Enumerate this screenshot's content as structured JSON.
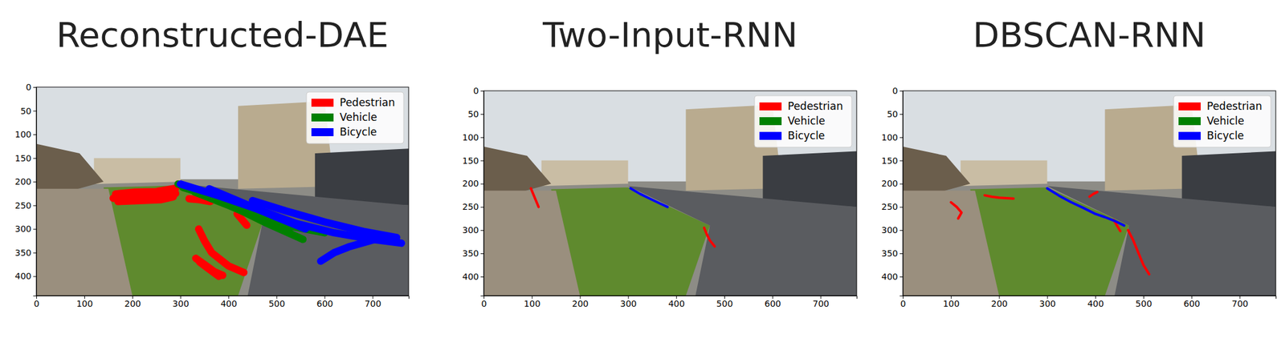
{
  "chart_data": [
    {
      "type": "line",
      "title": "Reconstructed-DAE",
      "xlim": [
        0,
        775
      ],
      "ylim": [
        441,
        0
      ],
      "xticks": [
        0,
        100,
        200,
        300,
        400,
        500,
        600,
        700
      ],
      "yticks": [
        0,
        50,
        100,
        150,
        200,
        250,
        300,
        350,
        400
      ],
      "legend": "upper right",
      "series": [
        {
          "name": "Pedestrian",
          "color": "#ff0000",
          "tracks": [
            {
              "x": [
                160,
                200,
                240,
                290
              ],
              "y": [
                235,
                232,
                230,
                225
              ]
            },
            {
              "x": [
                165,
                205,
                250,
                290
              ],
              "y": [
                226,
                222,
                221,
                214
              ]
            },
            {
              "x": [
                170,
                215,
                260,
                285
              ],
              "y": [
                242,
                240,
                238,
                232
              ]
            },
            {
              "x": [
                318,
                340,
                362
              ],
              "y": [
                236,
                238,
                242
              ]
            },
            {
              "x": [
                418,
                428,
                438
              ],
              "y": [
                268,
                280,
                292
              ]
            },
            {
              "x": [
                338,
                350,
                365,
                400,
                432
              ],
              "y": [
                300,
                325,
                350,
                378,
                392
              ]
            },
            {
              "x": [
                332,
                350,
                370,
                388
              ],
              "y": [
                362,
                375,
                390,
                398
              ]
            },
            {
              "x": [
                340,
                360,
                380
              ],
              "y": [
                370,
                385,
                400
              ]
            }
          ]
        },
        {
          "name": "Vehicle",
          "color": "#008000",
          "tracks": [
            {
              "x": [
                295,
                350,
                420,
                480,
                555
              ],
              "y": [
                205,
                225,
                258,
                288,
                322
              ]
            },
            {
              "x": [
                305,
                370,
                440,
                520,
                600
              ],
              "y": [
                212,
                232,
                262,
                292,
                308
              ]
            },
            {
              "x": [
                330,
                400,
                470,
                530
              ],
              "y": [
                222,
                250,
                280,
                310
              ]
            }
          ]
        },
        {
          "name": "Bicycle",
          "color": "#0000ff",
          "tracks": [
            {
              "x": [
                300,
                380,
                460,
                540,
                620,
                700,
                760
              ],
              "y": [
                205,
                230,
                258,
                288,
                308,
                322,
                330
              ]
            },
            {
              "x": [
                360,
                430,
                500,
                560
              ],
              "y": [
                215,
                245,
                275,
                300
              ]
            },
            {
              "x": [
                450,
                520,
                600,
                680,
                750
              ],
              "y": [
                240,
                262,
                285,
                305,
                318
              ]
            },
            {
              "x": [
                705,
                650,
                620,
                592
              ],
              "y": [
                322,
                338,
                350,
                368
              ]
            }
          ]
        }
      ]
    },
    {
      "type": "line",
      "title": "Two-Input-RNN",
      "xlim": [
        0,
        775
      ],
      "ylim": [
        441,
        0
      ],
      "xticks": [
        0,
        100,
        200,
        300,
        400,
        500,
        600,
        700
      ],
      "yticks": [
        0,
        50,
        100,
        150,
        200,
        250,
        300,
        350,
        400
      ],
      "legend": "upper right",
      "series": [
        {
          "name": "Pedestrian",
          "color": "#ff0000",
          "tracks": [
            {
              "x": [
                98,
                104,
                110,
                114
              ],
              "y": [
                210,
                225,
                240,
                250
              ]
            },
            {
              "x": [
                458,
                464,
                470,
                480
              ],
              "y": [
                295,
                310,
                322,
                335
              ]
            }
          ]
        },
        {
          "name": "Vehicle",
          "color": "#008000",
          "tracks": []
        },
        {
          "name": "Bicycle",
          "color": "#0000ff",
          "tracks": [
            {
              "x": [
                305,
                325,
                345,
                365,
                382
              ],
              "y": [
                210,
                222,
                232,
                242,
                250
              ]
            }
          ]
        }
      ]
    },
    {
      "type": "line",
      "title": "DBSCAN-RNN",
      "xlim": [
        0,
        775
      ],
      "ylim": [
        441,
        0
      ],
      "xticks": [
        0,
        100,
        200,
        300,
        400,
        500,
        600,
        700
      ],
      "yticks": [
        0,
        50,
        100,
        150,
        200,
        250,
        300,
        350,
        400
      ],
      "legend": "upper right",
      "series": [
        {
          "name": "Pedestrian",
          "color": "#ff0000",
          "tracks": [
            {
              "x": [
                100,
                112,
                122,
                115
              ],
              "y": [
                240,
                250,
                262,
                275
              ]
            },
            {
              "x": [
                170,
                185,
                200,
                215,
                230
              ],
              "y": [
                225,
                228,
                230,
                231,
                232
              ]
            },
            {
              "x": [
                388,
                396,
                404
              ],
              "y": [
                228,
                222,
                218
              ]
            },
            {
              "x": [
                438,
                445,
                452
              ],
              "y": [
                278,
                290,
                302
              ]
            },
            {
              "x": [
                468,
                478,
                488,
                500,
                512
              ],
              "y": [
                300,
                320,
                345,
                375,
                395
              ]
            }
          ]
        },
        {
          "name": "Vehicle",
          "color": "#008000",
          "tracks": []
        },
        {
          "name": "Bicycle",
          "color": "#0000ff",
          "tracks": [
            {
              "x": [
                300,
                325,
                350,
                375,
                400,
                420,
                440,
                460
              ],
              "y": [
                210,
                226,
                240,
                252,
                265,
                272,
                280,
                290
              ]
            }
          ]
        }
      ]
    }
  ]
}
